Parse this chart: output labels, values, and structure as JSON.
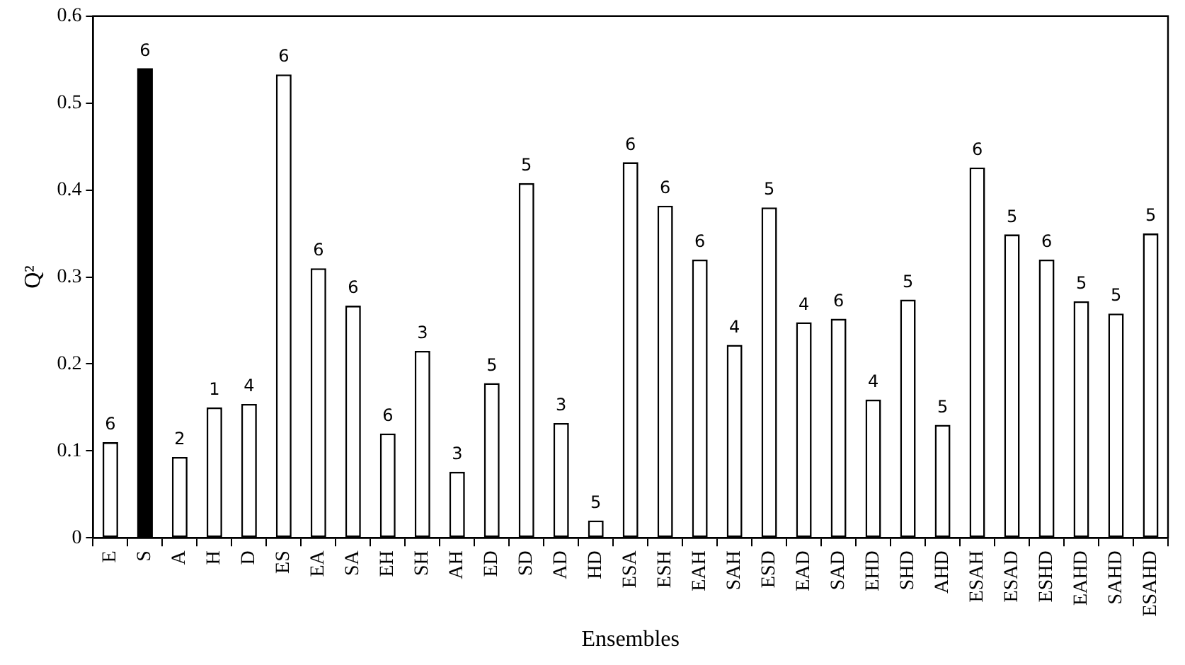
{
  "chart_data": {
    "type": "bar",
    "xlabel": "Ensembles",
    "ylabel": "Q²",
    "categories": [
      "E",
      "S",
      "A",
      "H",
      "D",
      "ES",
      "EA",
      "SA",
      "EH",
      "SH",
      "AH",
      "ED",
      "SD",
      "AD",
      "HD",
      "ESA",
      "ESH",
      "EAH",
      "SAH",
      "ESD",
      "EAD",
      "SAD",
      "EHD",
      "SHD",
      "AHD",
      "ESAH",
      "ESAD",
      "ESHD",
      "EAHD",
      "SAHD",
      "ESAHD"
    ],
    "values": [
      0.11,
      0.54,
      0.093,
      0.15,
      0.154,
      0.533,
      0.31,
      0.267,
      0.12,
      0.215,
      0.076,
      0.178,
      0.408,
      0.132,
      0.02,
      0.432,
      0.382,
      0.32,
      0.222,
      0.38,
      0.248,
      0.252,
      0.159,
      0.274,
      0.13,
      0.426,
      0.349,
      0.32,
      0.272,
      0.258,
      0.35
    ],
    "colors": [
      "#ffffff",
      "#000000",
      "#ffffff",
      "#ffffff",
      "#ffffff",
      "#ffffff",
      "#ffffff",
      "#ffffff",
      "#ffffff",
      "#ffffff",
      "#ffffff",
      "#ffffff",
      "#ffffff",
      "#ffffff",
      "#ffffff",
      "#ffffff",
      "#ffffff",
      "#ffffff",
      "#ffffff",
      "#ffffff",
      "#ffffff",
      "#ffffff",
      "#ffffff",
      "#ffffff",
      "#ffffff",
      "#ffffff",
      "#ffffff",
      "#ffffff",
      "#ffffff",
      "#ffffff",
      "#ffffff"
    ],
    "ylim": [
      0,
      0.6
    ],
    "yticks": [
      0,
      0.1,
      0.2,
      0.3,
      0.4,
      0.5,
      0.6
    ],
    "grid": false,
    "legend": false,
    "annotations": [
      {
        "text": "6",
        "x": "E",
        "y": 0.11
      },
      {
        "text": "6",
        "x": "S",
        "y": 0.54
      },
      {
        "text": "2",
        "x": "A",
        "y": 0.093
      },
      {
        "text": "1",
        "x": "H",
        "y": 0.15
      },
      {
        "text": "4",
        "x": "D",
        "y": 0.154
      },
      {
        "text": "6",
        "x": "ES",
        "y": 0.533
      },
      {
        "text": "6",
        "x": "EA",
        "y": 0.31
      },
      {
        "text": "6",
        "x": "SA",
        "y": 0.267
      },
      {
        "text": "6",
        "x": "EH",
        "y": 0.12
      },
      {
        "text": "3",
        "x": "SH",
        "y": 0.215
      },
      {
        "text": "3",
        "x": "AH",
        "y": 0.076
      },
      {
        "text": "5",
        "x": "ED",
        "y": 0.178
      },
      {
        "text": "5",
        "x": "SD",
        "y": 0.408
      },
      {
        "text": "3",
        "x": "AD",
        "y": 0.132
      },
      {
        "text": "5",
        "x": "HD",
        "y": 0.02
      },
      {
        "text": "6",
        "x": "ESA",
        "y": 0.432
      },
      {
        "text": "6",
        "x": "ESH",
        "y": 0.382
      },
      {
        "text": "6",
        "x": "EAH",
        "y": 0.32
      },
      {
        "text": "4",
        "x": "SAH",
        "y": 0.222
      },
      {
        "text": "5",
        "x": "ESD",
        "y": 0.38
      },
      {
        "text": "4",
        "x": "EAD",
        "y": 0.248
      },
      {
        "text": "6",
        "x": "SAD",
        "y": 0.252
      },
      {
        "text": "4",
        "x": "EHD",
        "y": 0.159
      },
      {
        "text": "5",
        "x": "SHD",
        "y": 0.274
      },
      {
        "text": "5",
        "x": "AHD",
        "y": 0.13
      },
      {
        "text": "6",
        "x": "ESAH",
        "y": 0.426
      },
      {
        "text": "5",
        "x": "ESAD",
        "y": 0.349
      },
      {
        "text": "6",
        "x": "ESHD",
        "y": 0.32
      },
      {
        "text": "5",
        "x": "EAHD",
        "y": 0.272
      },
      {
        "text": "5",
        "x": "SAHD",
        "y": 0.258
      },
      {
        "text": "5",
        "x": "ESAHD",
        "y": 0.35
      }
    ]
  }
}
